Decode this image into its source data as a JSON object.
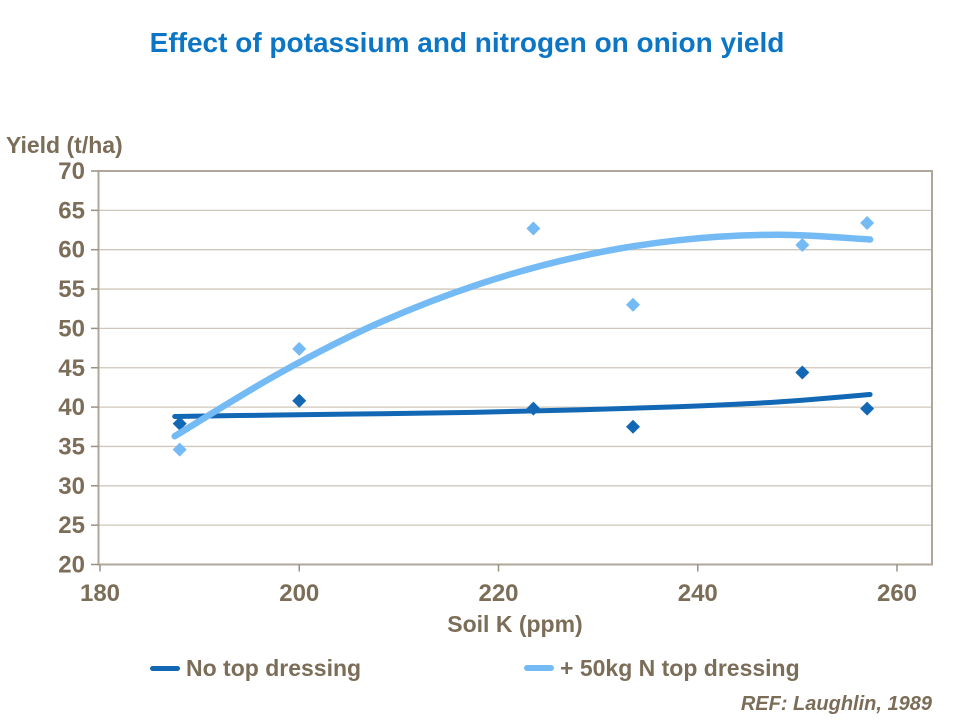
{
  "title": "Effect of potassium and nitrogen on onion yield",
  "footer": {
    "ref": "REF: Laughlin, 1989"
  },
  "colors": {
    "title_blue": "#0d76c4",
    "axis_text_brown": "#7b6d58",
    "gridline": "#cfc7bb",
    "plot_border": "#aea488",
    "plot_border2": "#b0a79a",
    "tick": "#9a9184",
    "series_dark_blue": "#1268b4",
    "series_light_blue": "#74baf5",
    "background": "#ffffff"
  },
  "chart_data": {
    "type": "scatter",
    "title": "Effect of potassium and nitrogen on onion yield",
    "xlabel": "Soil K (ppm)",
    "ylabel": "Yield (t/ha)",
    "xlim": [
      180,
      263.5
    ],
    "ylim": [
      20,
      70
    ],
    "xticks": [
      180,
      200,
      220,
      240,
      260
    ],
    "yticks": [
      20,
      25,
      30,
      35,
      40,
      45,
      50,
      55,
      60,
      65,
      70
    ],
    "grid": true,
    "legend_position": "bottom",
    "annotation": "REF: Laughlin, 1989",
    "series": [
      {
        "name": "No top dressing",
        "color": "#1268b4",
        "marker": "diamond",
        "points": [
          [
            188,
            37.9
          ],
          [
            200,
            40.8
          ],
          [
            223.5,
            39.8
          ],
          [
            233.5,
            37.5
          ],
          [
            250.5,
            44.4
          ],
          [
            257,
            39.8
          ]
        ],
        "trend": [
          [
            187.5,
            38.8
          ],
          [
            198,
            39.0
          ],
          [
            208,
            39.15
          ],
          [
            218,
            39.35
          ],
          [
            228,
            39.65
          ],
          [
            238,
            40.05
          ],
          [
            248,
            40.65
          ],
          [
            257.3,
            41.6
          ]
        ],
        "trend_type": "quadratic"
      },
      {
        "name": "+ 50kg N top dressing",
        "color": "#74baf5",
        "marker": "diamond",
        "points": [
          [
            188,
            34.6
          ],
          [
            200,
            47.4
          ],
          [
            223.5,
            62.7
          ],
          [
            233.5,
            53.0
          ],
          [
            250.5,
            60.6
          ],
          [
            257,
            63.4
          ]
        ],
        "trend": [
          [
            187.5,
            36.3
          ],
          [
            198,
            44.3
          ],
          [
            208,
            50.7
          ],
          [
            218,
            55.6
          ],
          [
            228,
            59.1
          ],
          [
            238,
            61.2
          ],
          [
            248,
            61.9
          ],
          [
            257.3,
            61.3
          ]
        ],
        "trend_type": "quadratic"
      }
    ]
  }
}
